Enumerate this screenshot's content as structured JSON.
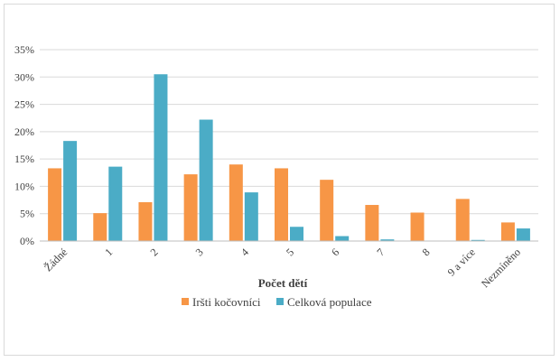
{
  "chart_data": {
    "type": "bar",
    "xlabel": "Počet dětí",
    "ylabel": "",
    "ylim": [
      0,
      35
    ],
    "yticks": [
      "0%",
      "5%",
      "10%",
      "15%",
      "20%",
      "25%",
      "30%",
      "35%"
    ],
    "ytick_values": [
      0,
      5,
      10,
      15,
      20,
      25,
      30,
      35
    ],
    "categories": [
      "Žádné",
      "1",
      "2",
      "3",
      "4",
      "5",
      "6",
      "7",
      "8",
      "9 a více",
      "Nezmíněno"
    ],
    "series": [
      {
        "name": "Iršti kočovníci",
        "color": "#f79646",
        "values": [
          13.3,
          5.1,
          7.1,
          12.2,
          14.0,
          13.3,
          11.2,
          6.6,
          5.2,
          7.7,
          3.4
        ]
      },
      {
        "name": "Celková populace",
        "color": "#4bacc6",
        "values": [
          18.3,
          13.6,
          30.5,
          22.2,
          8.9,
          2.6,
          0.9,
          0.3,
          0.0,
          0.2,
          2.3
        ]
      }
    ],
    "grid": true,
    "legend_position": "bottom"
  }
}
